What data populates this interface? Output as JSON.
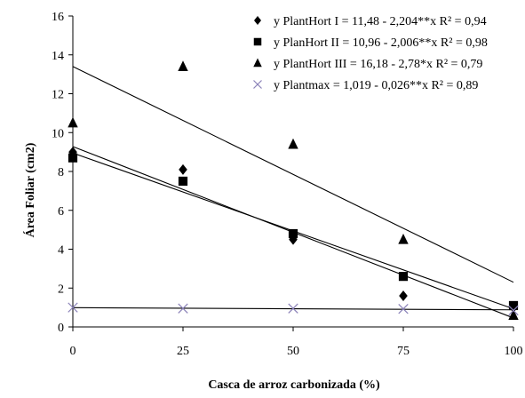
{
  "chart_data": {
    "type": "scatter",
    "title": "",
    "xlabel": "Casca de arroz carbonizada (%)",
    "ylabel": "Área Foliar  (cm2)",
    "xlim": [
      0,
      100
    ],
    "ylim": [
      0,
      16
    ],
    "x_ticks": [
      "0",
      "25",
      "50",
      "75",
      "100"
    ],
    "y_ticks": [
      "0",
      "2",
      "4",
      "6",
      "8",
      "10",
      "12",
      "14",
      "16"
    ],
    "x_values": [
      0,
      25,
      50,
      75,
      100
    ],
    "y_tick_values": [
      0,
      2,
      4,
      6,
      8,
      10,
      12,
      14,
      16
    ],
    "legend_position": "top-right",
    "series": [
      {
        "name": "y PlantHort I = 11,48 - 2,204**x  R² = 0,94",
        "marker": "diamond",
        "color": "#000000",
        "x": [
          0,
          25,
          50,
          75,
          100
        ],
        "y": [
          9.0,
          8.1,
          4.5,
          1.6,
          1.0
        ],
        "trend": [
          9.28,
          0.46
        ]
      },
      {
        "name": "y PlanHort II = 10,96 - 2,006**x  R² = 0,98",
        "marker": "square",
        "color": "#000000",
        "x": [
          0,
          25,
          50,
          75,
          100
        ],
        "y": [
          8.7,
          7.5,
          4.8,
          2.6,
          1.1
        ],
        "trend": [
          8.95,
          0.93
        ]
      },
      {
        "name": "y PlantHort III = 16,18 - 2,78*x  R² = 0,79",
        "marker": "triangle",
        "color": "#000000",
        "x": [
          0,
          25,
          50,
          75,
          100
        ],
        "y": [
          10.5,
          13.4,
          9.4,
          4.5,
          0.6
        ],
        "trend": [
          13.4,
          2.3
        ]
      },
      {
        "name": "y Plantmax = 1,019 - 0,026**x  R² = 0,89",
        "marker": "x",
        "color": "#8a82b8",
        "x": [
          0,
          25,
          50,
          75,
          100
        ],
        "y": [
          1.0,
          0.95,
          0.95,
          0.93,
          0.85
        ],
        "trend": [
          0.99,
          0.88
        ]
      }
    ]
  }
}
